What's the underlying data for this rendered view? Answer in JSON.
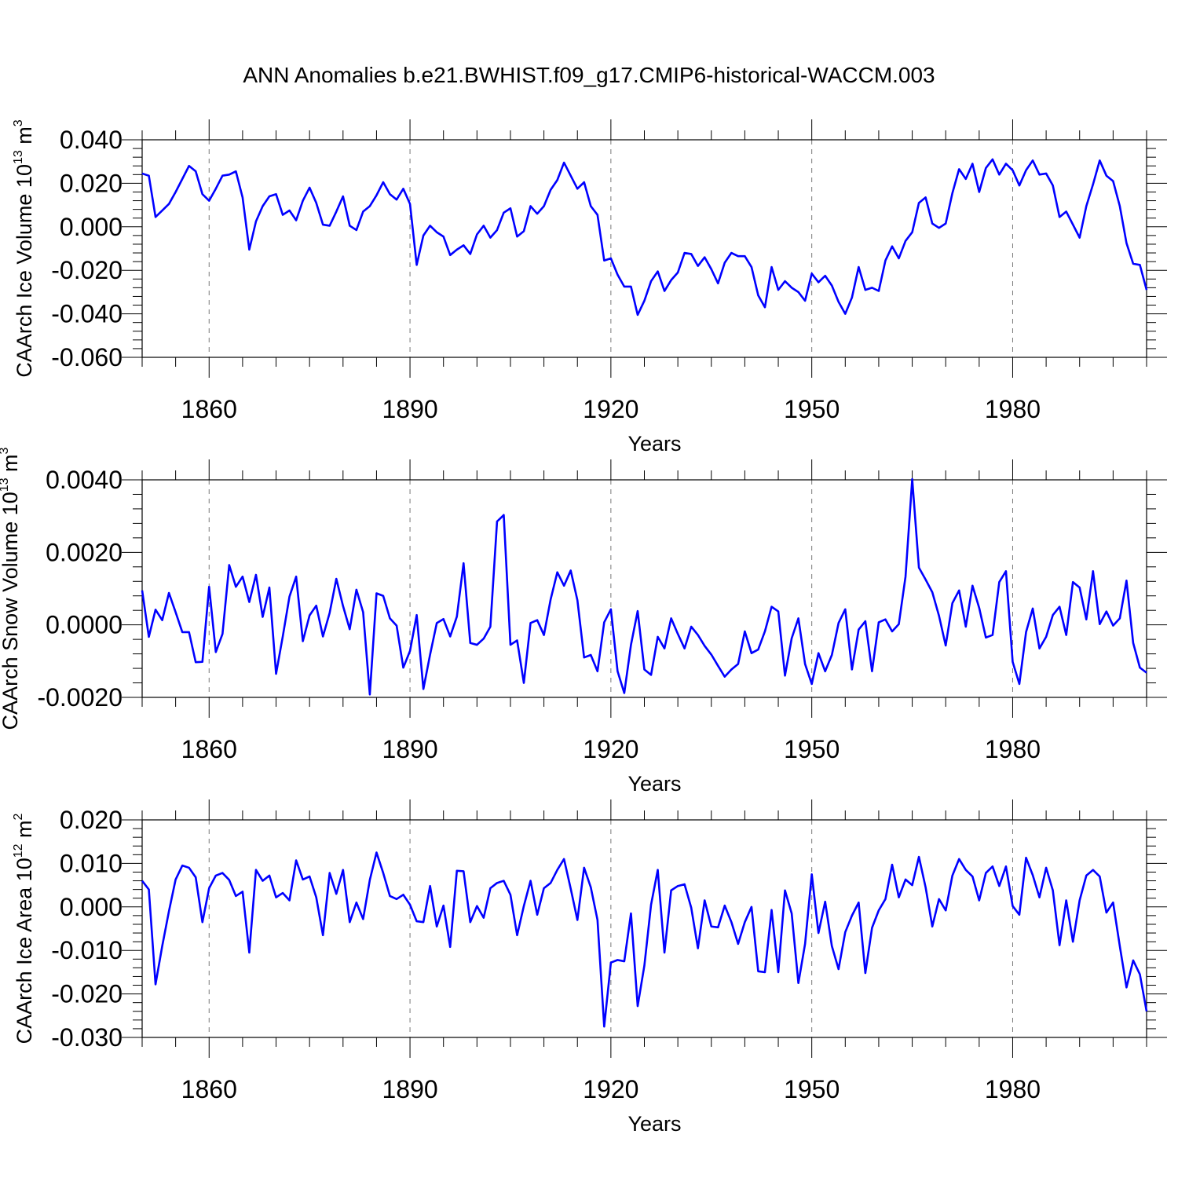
{
  "title": "ANN Anomalies b.e21.BWHIST.f09_g17.CMIP6-historical-WACCM.003",
  "line_color": "#0000ff",
  "chart_data": [
    {
      "type": "line",
      "ylabel": "CAArch Ice Volume 10",
      "ylabel_exp": "13",
      "ylabel_unit": " m",
      "ylabel_unit_exp": "3",
      "xlabel": "Years",
      "xlim": [
        1850,
        2000
      ],
      "ylim": [
        -0.06,
        0.04
      ],
      "yticks": [
        -0.06,
        -0.04,
        -0.02,
        0.0,
        0.02,
        0.04
      ],
      "ytick_labels": [
        "-0.060",
        "-0.040",
        "-0.020",
        "0.000",
        "0.020",
        "0.040"
      ],
      "xticks": [
        1860,
        1890,
        1920,
        1950,
        1980
      ],
      "xtick_labels": [
        "1860",
        "1890",
        "1920",
        "1950",
        "1980"
      ],
      "x_start": 1850,
      "values": [
        0.0245,
        0.0235,
        0.0045,
        0.0075,
        0.0105,
        0.016,
        0.022,
        0.028,
        0.0255,
        0.015,
        0.012,
        0.0175,
        0.0235,
        0.024,
        0.0255,
        0.0135,
        -0.0105,
        0.0025,
        0.0095,
        0.014,
        0.015,
        0.0055,
        0.0075,
        0.003,
        0.012,
        0.018,
        0.011,
        0.001,
        0.0005,
        0.007,
        0.014,
        0.0005,
        -0.0015,
        0.007,
        0.0095,
        0.0145,
        0.0205,
        0.015,
        0.0125,
        0.0175,
        0.0105,
        -0.0175,
        -0.004,
        0.0005,
        -0.0025,
        -0.0045,
        -0.013,
        -0.0105,
        -0.0085,
        -0.0125,
        -0.0035,
        0.0005,
        -0.005,
        -0.0015,
        0.0065,
        0.0085,
        -0.0045,
        -0.002,
        0.0095,
        0.006,
        0.0095,
        0.017,
        0.0215,
        0.0295,
        0.0235,
        0.0175,
        0.0205,
        0.0095,
        0.0055,
        -0.0155,
        -0.0145,
        -0.022,
        -0.0275,
        -0.0275,
        -0.0405,
        -0.034,
        -0.025,
        -0.0205,
        -0.0295,
        -0.0245,
        -0.021,
        -0.012,
        -0.0125,
        -0.018,
        -0.014,
        -0.0195,
        -0.026,
        -0.0165,
        -0.012,
        -0.0135,
        -0.0135,
        -0.0185,
        -0.0315,
        -0.037,
        -0.0185,
        -0.029,
        -0.025,
        -0.028,
        -0.03,
        -0.034,
        -0.0215,
        -0.0255,
        -0.0225,
        -0.027,
        -0.0345,
        -0.04,
        -0.0325,
        -0.0185,
        -0.029,
        -0.028,
        -0.0295,
        -0.0155,
        -0.009,
        -0.0145,
        -0.0065,
        -0.0025,
        0.011,
        0.0135,
        0.0015,
        -0.0005,
        0.0015,
        0.0155,
        0.0265,
        0.022,
        0.029,
        0.016,
        0.027,
        0.031,
        0.024,
        0.029,
        0.026,
        0.019,
        0.026,
        0.0305,
        0.024,
        0.0245,
        0.019,
        0.0045,
        0.007,
        0.001,
        -0.005,
        0.0095,
        0.0195,
        0.0305,
        0.0235,
        0.021,
        0.0095,
        -0.0075,
        -0.017,
        -0.0175,
        -0.029
      ]
    },
    {
      "type": "line",
      "ylabel": "CAArch Snow Volume 10",
      "ylabel_exp": "13",
      "ylabel_unit": " m",
      "ylabel_unit_exp": "3",
      "xlabel": "Years",
      "xlim": [
        1850,
        2000
      ],
      "ylim": [
        -0.002,
        0.004
      ],
      "yticks": [
        -0.002,
        0.0,
        0.002,
        0.004
      ],
      "ytick_labels": [
        "-0.0020",
        "0.0000",
        "0.0020",
        "0.0040"
      ],
      "xticks": [
        1860,
        1890,
        1920,
        1950,
        1980
      ],
      "xtick_labels": [
        "1860",
        "1890",
        "1920",
        "1950",
        "1980"
      ],
      "x_start": 1850,
      "values": [
        0.00095,
        -0.00033,
        0.00042,
        0.00013,
        0.00088,
        0.00035,
        -0.0002,
        -0.0002,
        -0.00103,
        -0.00102,
        0.00105,
        -0.00075,
        -0.00025,
        0.00165,
        0.00105,
        0.00133,
        0.00063,
        0.00138,
        0.00022,
        0.00103,
        -0.00135,
        -0.00032,
        0.00078,
        0.00133,
        -0.00045,
        0.00026,
        0.00053,
        -0.00032,
        0.00033,
        0.00127,
        0.00052,
        -0.00012,
        0.00097,
        0.00035,
        -0.00192,
        0.00087,
        0.0008,
        0.00018,
        -2e-05,
        -0.00118,
        -0.00072,
        0.00027,
        -0.00177,
        -0.00082,
        5e-05,
        0.00016,
        -0.00032,
        0.00023,
        0.0017,
        -0.0005,
        -0.00055,
        -0.00038,
        -5e-05,
        0.00285,
        0.00303,
        -0.00055,
        -0.00043,
        -0.0016,
        5e-05,
        0.00013,
        -0.00028,
        0.0007,
        0.00145,
        0.00108,
        0.0015,
        0.00068,
        -0.0009,
        -0.00083,
        -0.00128,
        7e-05,
        0.00043,
        -0.00128,
        -0.00188,
        -0.00055,
        0.00038,
        -0.00123,
        -0.00138,
        -0.00033,
        -0.00065,
        0.00018,
        -0.00025,
        -0.00065,
        -5e-05,
        -0.00028,
        -0.00058,
        -0.00082,
        -0.00113,
        -0.00143,
        -0.00123,
        -0.00108,
        -0.00018,
        -0.00078,
        -0.00068,
        -0.00018,
        0.0005,
        0.00037,
        -0.0014,
        -0.00037,
        0.00018,
        -0.00108,
        -0.00163,
        -0.00078,
        -0.00128,
        -0.00083,
        5e-05,
        0.00043,
        -0.00123,
        -0.00013,
        0.0001,
        -0.00128,
        7e-05,
        0.00015,
        -0.00018,
        2e-05,
        0.00133,
        0.00402,
        0.00158,
        0.00125,
        0.0009,
        0.00025,
        -0.00057,
        0.0006,
        0.00095,
        -5e-05,
        0.00108,
        0.00047,
        -0.00035,
        -0.00028,
        0.00118,
        0.00148,
        -0.00102,
        -0.00163,
        -0.0002,
        0.00045,
        -0.00065,
        -0.00033,
        0.00027,
        0.0005,
        -0.00028,
        0.00118,
        0.00103,
        0.00015,
        0.00148,
        2e-05,
        0.00037,
        -2e-05,
        0.00018,
        0.00122,
        -0.0005,
        -0.00118,
        -0.00132
      ]
    },
    {
      "type": "line",
      "ylabel": "CAArch Ice Area 10",
      "ylabel_exp": "12",
      "ylabel_unit": " m",
      "ylabel_unit_exp": "2",
      "xlabel": "Years",
      "xlim": [
        1850,
        2000
      ],
      "ylim": [
        -0.03,
        0.02
      ],
      "yticks": [
        -0.03,
        -0.02,
        -0.01,
        0.0,
        0.01,
        0.02
      ],
      "ytick_labels": [
        "-0.030",
        "-0.020",
        "-0.010",
        "0.000",
        "0.010",
        "0.020"
      ],
      "xticks": [
        1860,
        1890,
        1920,
        1950,
        1980
      ],
      "xtick_labels": [
        "1860",
        "1890",
        "1920",
        "1950",
        "1980"
      ],
      "x_start": 1850,
      "values": [
        0.006,
        0.004,
        -0.0178,
        -0.009,
        -0.001,
        0.0063,
        0.0095,
        0.009,
        0.0068,
        -0.0035,
        0.0043,
        0.0072,
        0.0078,
        0.0062,
        0.0025,
        0.0035,
        -0.0105,
        0.0085,
        0.006,
        0.0072,
        0.0022,
        0.0032,
        0.0015,
        0.0107,
        0.0063,
        0.007,
        0.0022,
        -0.0065,
        0.0078,
        0.003,
        0.0085,
        -0.0035,
        0.001,
        -0.0028,
        0.0062,
        0.0125,
        0.0078,
        0.0025,
        0.0018,
        0.0028,
        0.0005,
        -0.0033,
        -0.0035,
        0.0048,
        -0.0045,
        0.0003,
        -0.0092,
        0.0083,
        0.0082,
        -0.0035,
        0.0002,
        -0.0025,
        0.0043,
        0.0055,
        0.006,
        0.0028,
        -0.0065,
        0.0002,
        0.006,
        -0.0018,
        0.0043,
        0.0055,
        0.0085,
        0.011,
        0.0042,
        -0.003,
        0.009,
        0.0045,
        -0.003,
        -0.0275,
        -0.0128,
        -0.0122,
        -0.0125,
        -0.0015,
        -0.0228,
        -0.0135,
        0.0005,
        0.0085,
        -0.0105,
        0.0038,
        0.0048,
        0.0052,
        -0.0002,
        -0.0095,
        0.0015,
        -0.0045,
        -0.0047,
        0.0003,
        -0.0035,
        -0.0085,
        -0.0035,
        0.0,
        -0.0148,
        -0.015,
        -0.0007,
        -0.015,
        0.0038,
        -0.0015,
        -0.0175,
        -0.0085,
        0.0075,
        -0.006,
        0.0012,
        -0.009,
        -0.0143,
        -0.0058,
        -0.002,
        0.001,
        -0.0152,
        -0.0048,
        -0.0008,
        0.0018,
        0.0097,
        0.0022,
        0.0063,
        0.005,
        0.0115,
        0.0045,
        -0.0045,
        0.0018,
        -0.0008,
        0.0072,
        0.011,
        0.0085,
        0.007,
        0.0015,
        0.0078,
        0.0093,
        0.0048,
        0.0093,
        0.0002,
        -0.0018,
        0.0113,
        0.0073,
        0.0022,
        0.009,
        0.0038,
        -0.0088,
        0.0015,
        -0.008,
        0.0015,
        0.0072,
        0.0085,
        0.007,
        -0.0013,
        0.001,
        -0.009,
        -0.0185,
        -0.0123,
        -0.0155,
        -0.024
      ]
    }
  ]
}
